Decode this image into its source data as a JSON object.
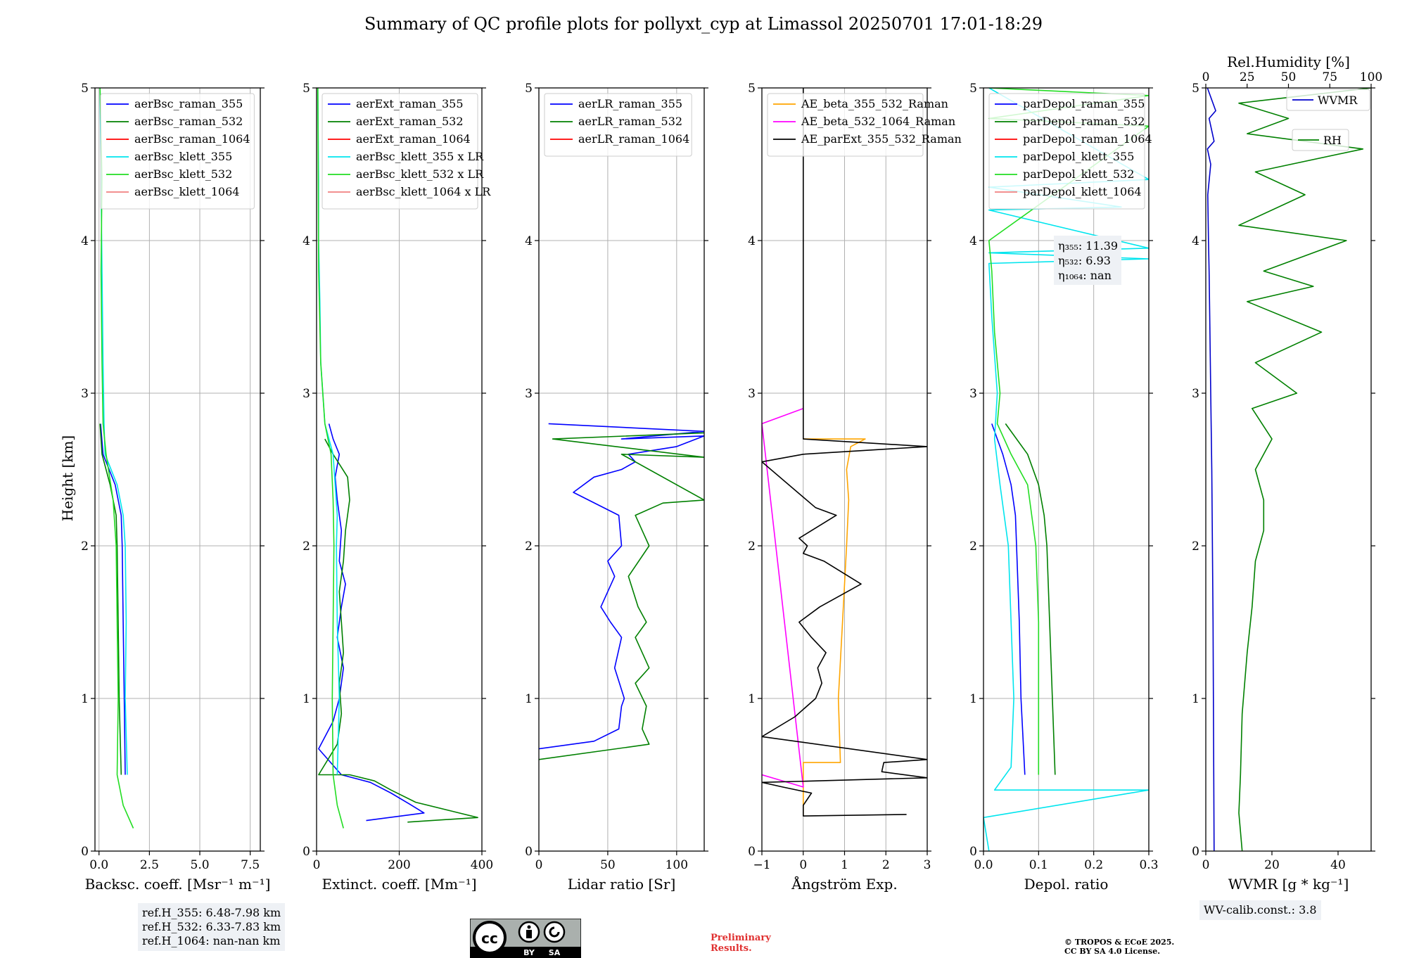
{
  "title": "Summary of QC profile plots for pollyxt_cyp at Limassol 20250701 17:01-18:29",
  "ylabel": "Height [km]",
  "chart_data": [
    {
      "id": "bsc",
      "type": "line",
      "xlabel": "Backsc. coeff. [Msr⁻¹ m⁻¹]",
      "xlim": [
        -0.2,
        8
      ],
      "ylim": [
        0,
        5
      ],
      "xticks": [
        0.0,
        2.5,
        5.0,
        7.5
      ],
      "xticklabels": [
        "0.0",
        "2.5",
        "5.0",
        "7.5"
      ],
      "yticks": [
        0,
        1,
        2,
        3,
        4,
        5
      ],
      "grid": true,
      "legend": "top-left",
      "series": [
        {
          "name": "aerBsc_raman_355",
          "color": "#0000ff",
          "x": [
            1.3,
            1.25,
            1.2,
            1.15,
            1.1,
            0.8,
            0.2,
            0.08
          ],
          "y": [
            0.5,
            1.0,
            1.5,
            2.0,
            2.2,
            2.4,
            2.6,
            2.8
          ]
        },
        {
          "name": "aerBsc_raman_532",
          "color": "#008000",
          "x": [
            1.1,
            1.0,
            0.95,
            0.9,
            0.85,
            0.55,
            0.15,
            0.05
          ],
          "y": [
            0.5,
            1.0,
            1.5,
            2.0,
            2.2,
            2.4,
            2.6,
            2.8
          ]
        },
        {
          "name": "aerBsc_raman_1064",
          "color": "#ff0000",
          "x": [],
          "y": []
        },
        {
          "name": "aerBsc_klett_355",
          "color": "#00e5ee",
          "x": [
            1.4,
            1.3,
            1.35,
            1.3,
            1.2,
            0.9,
            0.3,
            0.25,
            0.2,
            0.15,
            0.1,
            0.05
          ],
          "y": [
            0.5,
            1.0,
            1.5,
            2.0,
            2.2,
            2.4,
            2.6,
            2.8,
            3.2,
            3.8,
            4.4,
            5.0
          ]
        },
        {
          "name": "aerBsc_klett_532",
          "color": "#22dd22",
          "x": [
            1.7,
            1.2,
            0.9,
            0.95,
            0.9,
            0.85,
            0.7,
            0.35,
            0.2,
            0.15,
            0.1,
            0.15,
            0.05
          ],
          "y": [
            0.15,
            0.3,
            0.5,
            1.0,
            1.5,
            2.0,
            2.3,
            2.6,
            2.8,
            3.2,
            3.8,
            4.4,
            5.0
          ]
        },
        {
          "name": "aerBsc_klett_1064",
          "color": "#f08080",
          "x": [],
          "y": []
        }
      ]
    },
    {
      "id": "ext",
      "type": "line",
      "xlabel": "Extinct. coeff. [Mm⁻¹]",
      "xlim": [
        0,
        400
      ],
      "ylim": [
        0,
        5
      ],
      "xticks": [
        0,
        200,
        400
      ],
      "xticklabels": [
        "0",
        "200",
        "400"
      ],
      "yticks": [
        0,
        1,
        2,
        3,
        4,
        5
      ],
      "grid": true,
      "legend": "top-left",
      "series": [
        {
          "name": "aerExt_raman_355",
          "color": "#0000ff",
          "x": [
            120,
            260,
            230,
            180,
            130,
            60,
            5,
            40,
            55,
            65,
            50,
            60,
            70,
            55,
            60,
            50,
            45,
            55,
            40,
            30
          ],
          "y": [
            0.2,
            0.25,
            0.3,
            0.38,
            0.45,
            0.5,
            0.67,
            0.85,
            1.0,
            1.2,
            1.4,
            1.6,
            1.75,
            1.9,
            2.1,
            2.3,
            2.45,
            2.6,
            2.7,
            2.8
          ]
        },
        {
          "name": "aerExt_raman_532",
          "color": "#008000",
          "x": [
            220,
            390,
            330,
            240,
            180,
            140,
            80,
            5,
            50,
            60,
            55,
            65,
            60,
            55,
            65,
            70,
            80,
            75,
            40,
            20
          ],
          "y": [
            0.19,
            0.22,
            0.26,
            0.32,
            0.4,
            0.46,
            0.5,
            0.5,
            0.7,
            0.9,
            1.1,
            1.3,
            1.5,
            1.7,
            1.9,
            2.1,
            2.3,
            2.45,
            2.6,
            2.7
          ]
        },
        {
          "name": "aerExt_raman_1064",
          "color": "#ff0000",
          "x": [],
          "y": []
        },
        {
          "name": "aerBsc_klett_355 x LR",
          "color": "#00e5ee",
          "x": [
            50,
            55,
            50,
            48,
            50,
            45,
            40,
            20,
            10,
            8,
            5,
            5,
            3
          ],
          "y": [
            0.5,
            1.0,
            1.5,
            2.0,
            2.2,
            2.4,
            2.6,
            2.8,
            3.2,
            3.6,
            4.0,
            4.4,
            5.0
          ]
        },
        {
          "name": "aerBsc_klett_532 x LR",
          "color": "#22dd22",
          "x": [
            65,
            50,
            40,
            38,
            40,
            42,
            40,
            35,
            20,
            10,
            5,
            4,
            3
          ],
          "y": [
            0.15,
            0.3,
            0.5,
            1.0,
            1.5,
            2.0,
            2.3,
            2.6,
            2.8,
            3.2,
            3.8,
            4.4,
            5.0
          ]
        },
        {
          "name": "aerBsc_klett_1064 x LR",
          "color": "#f08080",
          "x": [],
          "y": []
        }
      ]
    },
    {
      "id": "lr",
      "type": "line",
      "xlabel": "Lidar ratio [Sr]",
      "xlim": [
        0,
        120
      ],
      "ylim": [
        0,
        5
      ],
      "xticks": [
        0,
        50,
        100
      ],
      "xticklabels": [
        "0",
        "50",
        "100"
      ],
      "yticks": [
        0,
        1,
        2,
        3,
        4,
        5
      ],
      "grid": true,
      "legend": "top-left",
      "series": [
        {
          "name": "aerLR_raman_355",
          "color": "#0000ff",
          "x": [
            0,
            40,
            58,
            60,
            62,
            55,
            60,
            52,
            45,
            55,
            50,
            60,
            58,
            25,
            40,
            60,
            70,
            65,
            100,
            120,
            60,
            120,
            7
          ],
          "y": [
            0.67,
            0.72,
            0.8,
            0.95,
            1.0,
            1.2,
            1.4,
            1.5,
            1.6,
            1.8,
            1.9,
            2.0,
            2.2,
            2.35,
            2.45,
            2.5,
            2.55,
            2.6,
            2.65,
            2.72,
            2.7,
            2.75,
            2.8
          ]
        },
        {
          "name": "aerLR_raman_532",
          "color": "#008000",
          "x": [
            0,
            80,
            75,
            78,
            70,
            80,
            70,
            78,
            72,
            65,
            80,
            75,
            70,
            90,
            120,
            60,
            120,
            10,
            120
          ],
          "y": [
            0.6,
            0.7,
            0.8,
            0.95,
            1.1,
            1.2,
            1.4,
            1.5,
            1.6,
            1.8,
            2.0,
            2.1,
            2.2,
            2.28,
            2.3,
            2.6,
            2.58,
            2.7,
            2.74
          ]
        },
        {
          "name": "aerLR_raman_1064",
          "color": "#ff0000",
          "x": [],
          "y": []
        }
      ]
    },
    {
      "id": "ae",
      "type": "line",
      "xlabel": "Ångström Exp.",
      "xlim": [
        -1,
        3
      ],
      "ylim": [
        0,
        5
      ],
      "xticks": [
        -1,
        0,
        1,
        2,
        3
      ],
      "xticklabels": [
        "−1",
        "0",
        "1",
        "2",
        "3"
      ],
      "yticks": [
        0,
        1,
        2,
        3,
        4,
        5
      ],
      "grid": true,
      "legend": "top-left",
      "series": [
        {
          "name": "AE_beta_355_532_Raman",
          "color": "#ffa500",
          "x": [
            0,
            0,
            0.9,
            0.85,
            0.95,
            1.05,
            1.1,
            1.05,
            1.15,
            1.5,
            0
          ],
          "y": [
            0.23,
            0.58,
            0.58,
            1.0,
            1.5,
            2.0,
            2.3,
            2.5,
            2.65,
            2.7,
            2.7
          ]
        },
        {
          "name": "AE_beta_532_1064_Raman",
          "color": "#ff00ff",
          "x": [
            -1,
            0,
            -1,
            0
          ],
          "y": [
            0.5,
            0.42,
            2.8,
            2.9
          ]
        },
        {
          "name": "AE_parExt_355_532_Raman",
          "color": "#000000",
          "x": [
            2.5,
            0,
            0,
            0.2,
            -0.5,
            -1,
            3,
            1.9,
            1.95,
            3,
            -1,
            -0.2,
            0.3,
            0.45,
            0.35,
            0.55,
            0.2,
            -0.1,
            0.4,
            1.4,
            0.5,
            0.0,
            0.1,
            -0.1,
            0.2,
            0.8,
            0.3,
            -1,
            0,
            3,
            0,
            0
          ],
          "y": [
            0.24,
            0.23,
            0.3,
            0.38,
            0.42,
            0.45,
            0.48,
            0.52,
            0.58,
            0.6,
            0.75,
            0.88,
            1.0,
            1.1,
            1.2,
            1.3,
            1.4,
            1.5,
            1.6,
            1.75,
            1.9,
            1.95,
            2.0,
            2.05,
            2.1,
            2.2,
            2.25,
            2.55,
            2.6,
            2.65,
            2.7,
            5.0
          ]
        }
      ]
    },
    {
      "id": "depol",
      "type": "line",
      "xlabel": "Depol. ratio",
      "xlim": [
        0,
        0.3
      ],
      "ylim": [
        0,
        5
      ],
      "xticks": [
        0.0,
        0.1,
        0.2,
        0.3
      ],
      "xticklabels": [
        "0.0",
        "0.1",
        "0.2",
        "0.3"
      ],
      "yticks": [
        0,
        1,
        2,
        3,
        4,
        5
      ],
      "grid": true,
      "legend": "top-left",
      "annotation": [
        "η₃₅₅: 11.39",
        "η₅₃₂: 6.93",
        "η₁₀₆₄: nan"
      ],
      "series": [
        {
          "name": "parDepol_raman_355",
          "color": "#0000ff",
          "x": [
            0.075,
            0.068,
            0.065,
            0.06,
            0.058,
            0.05,
            0.035,
            0.025,
            0.015
          ],
          "y": [
            0.5,
            1.0,
            1.5,
            2.0,
            2.2,
            2.4,
            2.6,
            2.7,
            2.8
          ]
        },
        {
          "name": "parDepol_raman_532",
          "color": "#008000",
          "x": [
            0.13,
            0.125,
            0.12,
            0.115,
            0.11,
            0.1,
            0.08,
            0.04
          ],
          "y": [
            0.5,
            1.0,
            1.5,
            2.0,
            2.2,
            2.4,
            2.6,
            2.8
          ]
        },
        {
          "name": "parDepol_raman_1064",
          "color": "#ff0000",
          "x": [],
          "y": []
        },
        {
          "name": "parDepol_klett_355",
          "color": "#00e5ee",
          "x": [
            0.01,
            0.0,
            0.3,
            0.02,
            0.05,
            0.055,
            0.05,
            0.045,
            0.03,
            0.02,
            0.025,
            0.015,
            0.01,
            0.3,
            0.01,
            0.3,
            0.01,
            0.25,
            0.01,
            0.3,
            0.01
          ],
          "y": [
            0.0,
            0.22,
            0.4,
            0.4,
            0.55,
            1.0,
            1.5,
            2.0,
            2.4,
            2.7,
            3.0,
            3.5,
            3.85,
            3.88,
            3.92,
            3.95,
            4.2,
            4.22,
            4.35,
            4.4,
            5.0
          ]
        },
        {
          "name": "parDepol_klett_532",
          "color": "#22dd22",
          "x": [
            0.1,
            0.1,
            0.1,
            0.095,
            0.08,
            0.05,
            0.025,
            0.03,
            0.02,
            0.015,
            0.01,
            0.3,
            0.01,
            0.3,
            0.01
          ],
          "y": [
            0.5,
            1.0,
            1.5,
            2.0,
            2.4,
            2.6,
            2.8,
            3.0,
            3.4,
            3.8,
            4.0,
            4.75,
            4.8,
            4.95,
            5.0
          ]
        },
        {
          "name": "parDepol_klett_1064",
          "color": "#f08080",
          "x": [],
          "y": []
        }
      ]
    },
    {
      "id": "wv",
      "type": "line",
      "xlabel": "WVMR [g * kg⁻¹]",
      "xlim": [
        0,
        50
      ],
      "ylim": [
        0,
        5
      ],
      "xticks": [
        0,
        20,
        40
      ],
      "xticklabels": [
        "0",
        "20",
        "40"
      ],
      "yticks": [
        0,
        1,
        2,
        3,
        4,
        5
      ],
      "grid": false,
      "legend": "top-right",
      "top_axis": {
        "label": "Rel.Humidity [%]",
        "xlim": [
          0,
          100
        ],
        "xticks": [
          0,
          25,
          50,
          75,
          100
        ],
        "xticklabels": [
          "0",
          "25",
          "50",
          "75",
          "100"
        ]
      },
      "annotation_bottom": "WV-calib.const.: 3.8",
      "series": [
        {
          "name": "WVMR",
          "color": "#0000cc",
          "axis": "bottom",
          "x": [
            2.5,
            2.4,
            2.3,
            2.2,
            2.0,
            1.8,
            1.5,
            1.2,
            1.0,
            0.8,
            0.6,
            1.5,
            0.5,
            2.5,
            1.0,
            3.0,
            0.5
          ],
          "y": [
            0.0,
            0.5,
            1.0,
            1.5,
            2.0,
            2.5,
            3.0,
            3.5,
            3.8,
            4.0,
            4.3,
            4.5,
            4.6,
            4.65,
            4.8,
            4.85,
            5.0
          ]
        },
        {
          "name": "RH",
          "color": "#008000",
          "axis": "top",
          "x": [
            22,
            20,
            21,
            22,
            25,
            28,
            30,
            35,
            35,
            30,
            40,
            28,
            55,
            30,
            70,
            25,
            65,
            35,
            85,
            20,
            60,
            30,
            95,
            25,
            50,
            20,
            100
          ],
          "y": [
            0.0,
            0.25,
            0.5,
            0.9,
            1.3,
            1.6,
            1.9,
            2.1,
            2.3,
            2.5,
            2.7,
            2.9,
            3.0,
            3.2,
            3.4,
            3.6,
            3.7,
            3.8,
            4.0,
            4.1,
            4.3,
            4.45,
            4.6,
            4.7,
            4.8,
            4.9,
            5.0
          ]
        }
      ]
    }
  ],
  "refbox": [
    "ref.H_355: 6.48-7.98 km",
    "ref.H_532: 6.33-7.83 km",
    "ref.H_1064: nan-nan km"
  ],
  "license_badge": {
    "symbol": "cc",
    "labels": [
      "BY",
      "SA"
    ]
  },
  "preliminary": [
    "Preliminary",
    "Results."
  ],
  "copyright": [
    "© TROPOS & ECoE 2025.",
    "CC BY SA 4.0 License."
  ]
}
